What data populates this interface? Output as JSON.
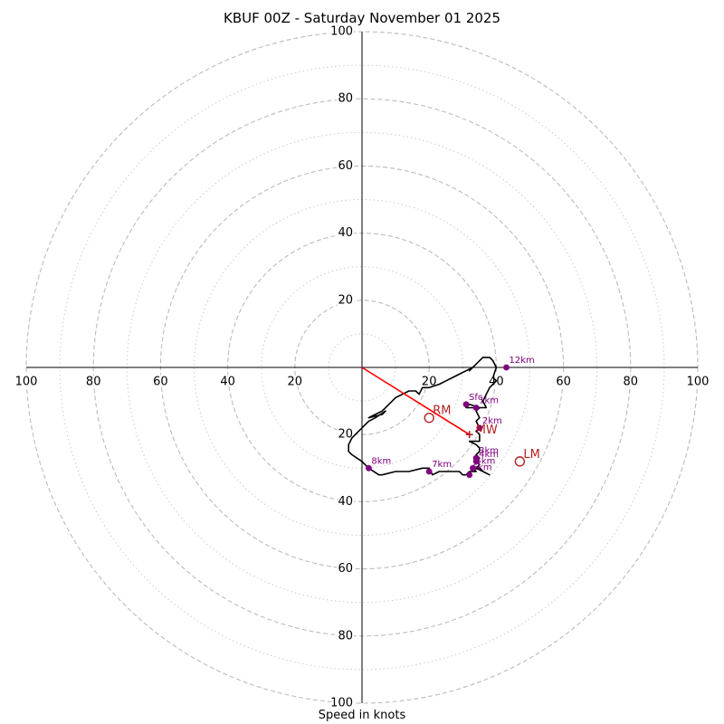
{
  "chart_data": {
    "type": "hodograph",
    "title": "KBUF 00Z - Saturday November 01 2025",
    "xlabel": "Speed in knots",
    "ylabel": "",
    "units": "knots",
    "range": [
      -100,
      100
    ],
    "rings_major": [
      20,
      40,
      60,
      80,
      100
    ],
    "rings_minor": [
      10,
      30,
      50,
      70,
      90
    ],
    "tick_labels": {
      "x_left": [
        "100",
        "80",
        "60",
        "40",
        "20"
      ],
      "x_right": [
        "20",
        "40",
        "60",
        "80",
        "100"
      ],
      "y_top": [
        "20",
        "40",
        "60",
        "80",
        "100"
      ],
      "y_bottom": [
        "20",
        "40",
        "60",
        "80",
        "100"
      ]
    },
    "trace": [
      [
        31,
        -32
      ],
      [
        32,
        -31
      ],
      [
        33,
        -31
      ],
      [
        34,
        -31
      ],
      [
        33,
        -30
      ],
      [
        34,
        -30
      ],
      [
        35,
        -30
      ],
      [
        36,
        -31
      ],
      [
        38,
        -32
      ],
      [
        34,
        -30
      ],
      [
        35,
        -29
      ],
      [
        34,
        -28
      ],
      [
        35,
        -27
      ],
      [
        34,
        -26
      ],
      [
        35,
        -25
      ],
      [
        35,
        -24
      ],
      [
        34,
        -23
      ],
      [
        32,
        -22
      ],
      [
        35,
        -22
      ],
      [
        35,
        -20
      ],
      [
        34,
        -19
      ],
      [
        35,
        -18
      ],
      [
        34,
        -16
      ],
      [
        35,
        -15
      ],
      [
        34,
        -13
      ],
      [
        35,
        -12
      ],
      [
        33,
        -12
      ],
      [
        31,
        -12
      ],
      [
        32,
        -11
      ],
      [
        35,
        -12
      ],
      [
        37,
        -12
      ],
      [
        36,
        -10
      ],
      [
        38,
        -6
      ],
      [
        40,
        -4
      ],
      [
        39,
        -3
      ],
      [
        40,
        0
      ],
      [
        39,
        2
      ],
      [
        38,
        3
      ],
      [
        36,
        3
      ],
      [
        34,
        1
      ],
      [
        33,
        0
      ],
      [
        32,
        -1
      ],
      [
        33,
        0
      ],
      [
        31,
        -1
      ],
      [
        29,
        -2
      ],
      [
        27,
        -3
      ],
      [
        25,
        -4
      ],
      [
        23,
        -5
      ],
      [
        20,
        -6
      ],
      [
        18,
        -6
      ],
      [
        17,
        -8
      ],
      [
        16,
        -7
      ],
      [
        14,
        -7
      ],
      [
        12,
        -8
      ],
      [
        10,
        -9
      ],
      [
        8,
        -11
      ],
      [
        6,
        -13
      ],
      [
        4,
        -14
      ],
      [
        2,
        -15
      ],
      [
        6,
        -14
      ],
      [
        7,
        -13
      ],
      [
        4,
        -15
      ],
      [
        2,
        -16
      ],
      [
        0,
        -18
      ],
      [
        -2,
        -20
      ],
      [
        -3,
        -21
      ],
      [
        -4,
        -23
      ],
      [
        -4,
        -25
      ],
      [
        -3,
        -26
      ],
      [
        0,
        -28
      ],
      [
        2,
        -30
      ],
      [
        5,
        -32
      ],
      [
        6,
        -32
      ],
      [
        10,
        -31
      ],
      [
        14,
        -31
      ],
      [
        18,
        -30
      ],
      [
        19,
        -30
      ],
      [
        20,
        -30
      ],
      [
        21,
        -32
      ],
      [
        23,
        -31
      ],
      [
        25,
        -31
      ],
      [
        27,
        -31
      ],
      [
        29,
        -31
      ],
      [
        30,
        -32
      ],
      [
        31,
        -32
      ]
    ],
    "level_points": [
      {
        "label": "Sfc",
        "u": 31,
        "v": -11
      },
      {
        "label": "1km",
        "u": 34,
        "v": -12
      },
      {
        "label": "2km",
        "u": 35,
        "v": -18
      },
      {
        "label": "3km",
        "u": 34,
        "v": -27
      },
      {
        "label": "4km",
        "u": 34,
        "v": -28
      },
      {
        "label": "5km",
        "u": 33,
        "v": -30
      },
      {
        "label": "6km",
        "u": 32,
        "v": -32
      },
      {
        "label": "7km",
        "u": 20,
        "v": -31
      },
      {
        "label": "8km",
        "u": 2,
        "v": -30
      },
      {
        "label": "12km",
        "u": 43,
        "v": 0
      }
    ],
    "storm_motion": [
      {
        "label": "RM",
        "u": 20,
        "v": -15
      },
      {
        "label": "MW",
        "u": 32,
        "v": -20
      },
      {
        "label": "LM",
        "u": 47,
        "v": -28
      }
    ],
    "shear_vector": {
      "from": [
        0,
        0
      ],
      "to": [
        32,
        -20
      ]
    },
    "colors": {
      "trace": "#000000",
      "level_point": "#800080",
      "level_label": "#800080",
      "storm_motion": "#b22222",
      "shear_vector": "#ff0000",
      "ring_major": "#bbbbbb",
      "ring_minor": "#cccccc",
      "axis": "#000000"
    }
  }
}
